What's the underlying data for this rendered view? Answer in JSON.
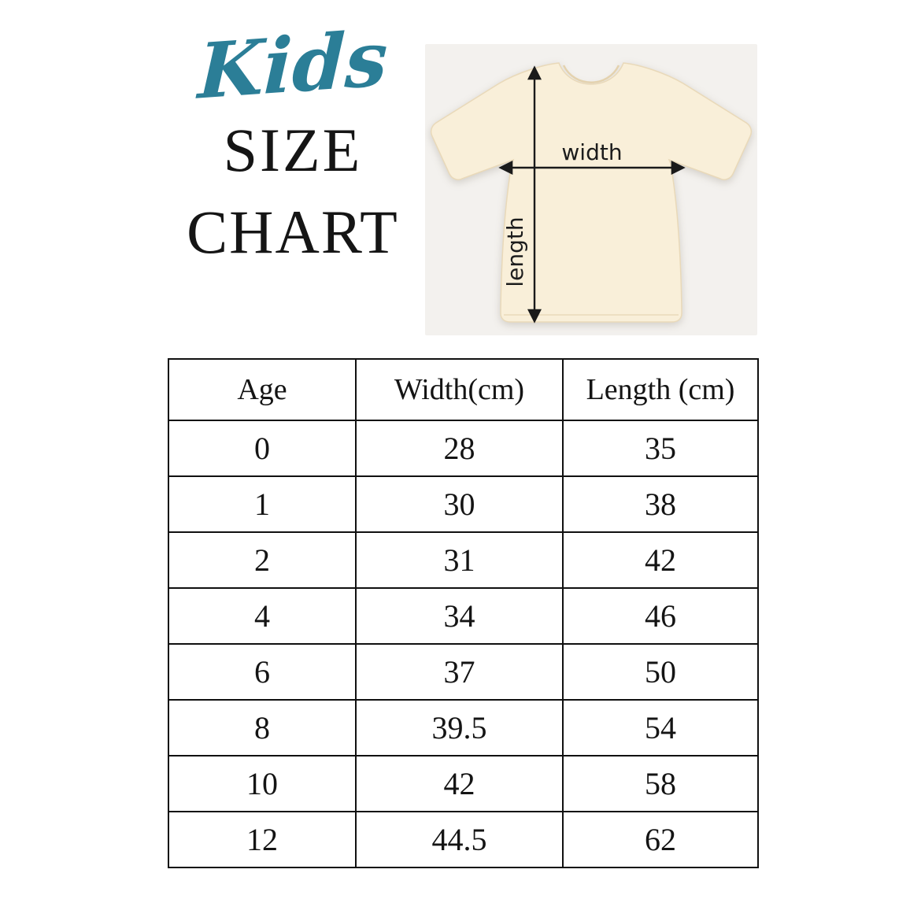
{
  "title": {
    "script": "Kids",
    "line1": "SIZE",
    "line2": "CHART",
    "script_color": "#2b7e97",
    "text_color": "#151515"
  },
  "diagram": {
    "width_label": "width",
    "length_label": "length",
    "shirt_color": "#f9efd9",
    "shirt_edge_color": "#e9d9b9",
    "photo_background": "#f3f1ee",
    "arrow_color": "#1a1a1a"
  },
  "chart_data": {
    "type": "table",
    "title": "Kids Size Chart",
    "columns": [
      "Age",
      "Width(cm)",
      "Length (cm)"
    ],
    "rows": [
      [
        "0",
        "28",
        "35"
      ],
      [
        "1",
        "30",
        "38"
      ],
      [
        "2",
        "31",
        "42"
      ],
      [
        "4",
        "34",
        "46"
      ],
      [
        "6",
        "37",
        "50"
      ],
      [
        "8",
        "39.5",
        "54"
      ],
      [
        "10",
        "42",
        "58"
      ],
      [
        "12",
        "44.5",
        "62"
      ]
    ]
  }
}
